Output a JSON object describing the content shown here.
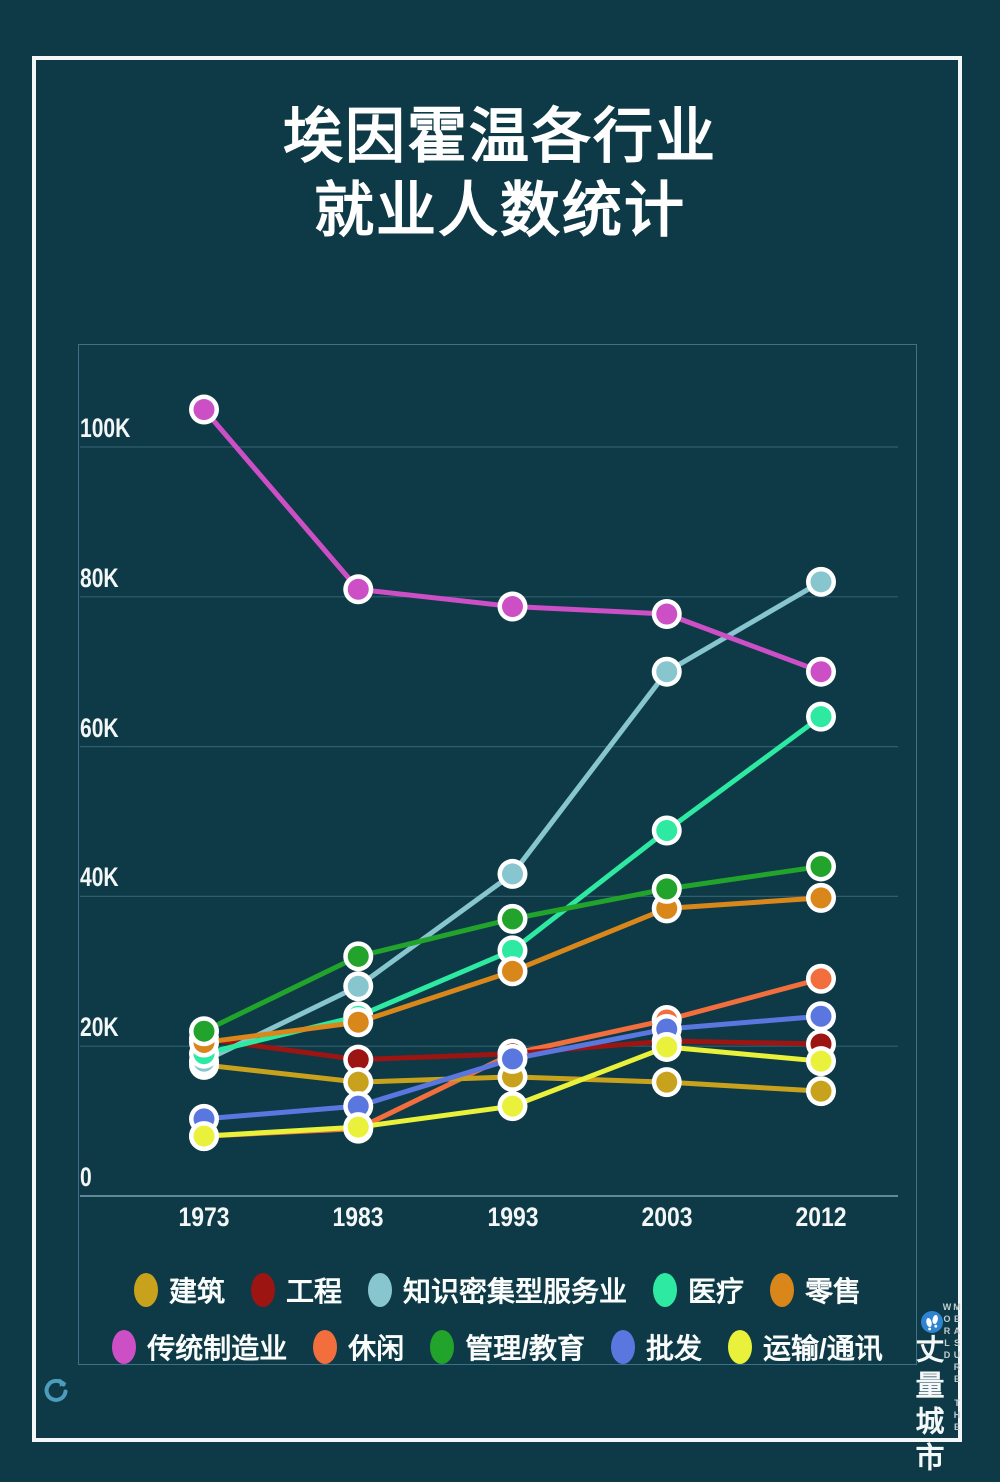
{
  "title": {
    "line1": "埃因霍温各行业",
    "line2": "就业人数统计"
  },
  "chart_data": {
    "type": "line",
    "unit": "thousand_persons",
    "categories": [
      "1973",
      "1983",
      "1993",
      "2003",
      "2012"
    ],
    "y_ticks": [
      "0",
      "20K",
      "40K",
      "60K",
      "80K",
      "100K"
    ],
    "y_tick_values": [
      0,
      20,
      40,
      60,
      80,
      100
    ],
    "ylim": [
      0,
      110
    ],
    "grid": true,
    "legend_position": "bottom",
    "series": [
      {
        "name": "建筑",
        "color": "#c9a21d",
        "values": [
          17.5,
          15.2,
          15.9,
          15.2,
          14
        ]
      },
      {
        "name": "工程",
        "color": "#9c1512",
        "values": [
          21,
          18.2,
          19,
          20.7,
          20.3
        ]
      },
      {
        "name": "知识密集型服务业",
        "color": "#87c5cf",
        "values": [
          18,
          28,
          43,
          70,
          82
        ]
      },
      {
        "name": "医疗",
        "color": "#2de9a2",
        "values": [
          19,
          24,
          32.8,
          48.8,
          64
        ]
      },
      {
        "name": "零售",
        "color": "#d9861a",
        "values": [
          20.5,
          23.2,
          30,
          38.4,
          39.8
        ]
      },
      {
        "name": "传统制造业",
        "color": "#cc4fc6",
        "values": [
          105,
          81,
          78.7,
          77.7,
          70
        ]
      },
      {
        "name": "休闲",
        "color": "#f26e3d",
        "values": [
          8,
          9,
          19,
          23.5,
          29
        ]
      },
      {
        "name": "管理/教育",
        "color": "#22a32b",
        "values": [
          22,
          32,
          37,
          41,
          44
        ]
      },
      {
        "name": "批发",
        "color": "#5a77e0",
        "values": [
          10.3,
          12,
          18.3,
          22.3,
          24
        ]
      },
      {
        "name": "运输/通讯",
        "color": "#e9f13a",
        "values": [
          8,
          9.2,
          12,
          19.9,
          18
        ]
      }
    ],
    "draw_order": [
      "休闲",
      "工程",
      "建筑",
      "知识密集型服务业",
      "医疗",
      "零售",
      "管理/教育",
      "批发",
      "运输/通讯",
      "传统制造业"
    ],
    "legend_rows": [
      [
        "建筑",
        "工程",
        "知识密集型服务业",
        "医疗",
        "零售"
      ],
      [
        "传统制造业",
        "休闲",
        "管理/教育",
        "批发",
        "运输/通讯"
      ]
    ]
  },
  "branding": {
    "cn": "丈量城市",
    "en": "MEASURE THE WORLD"
  },
  "colors": {
    "background": "#0d3a46",
    "frame": "#f3f7f7",
    "chart_border": "#3d7187",
    "grid": "#2f5e6d",
    "axis_line": "#608a99",
    "text": "#ffffff",
    "dot_ring": "#ffffff",
    "logo": "#2f84d2",
    "refresh": "#4d9cbc"
  }
}
